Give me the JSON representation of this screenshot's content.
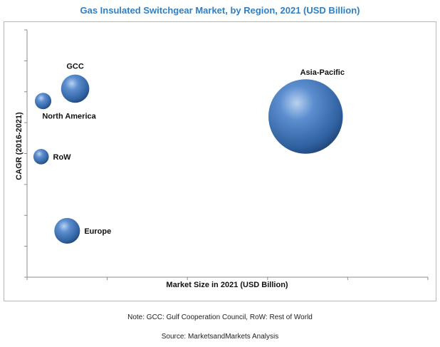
{
  "title": "Gas Insulated Switchgear Market, by Region, 2021 (USD Billion)",
  "note": "Note: GCC: Gulf Cooperation Council, RoW: Rest of World",
  "source": "Source: MarketsandMarkets Analysis",
  "chart_data": {
    "type": "scatter",
    "title": "Gas Insulated Switchgear Market, by Region, 2021 (USD Billion)",
    "xlabel": "Market Size in 2021 (USD Billion)",
    "ylabel": "CAGR (2016-2021)",
    "xlim": [
      0,
      10
    ],
    "ylim": [
      0,
      8
    ],
    "grid": false,
    "tick_labels_shown": false,
    "bubble_color": "#3f72b6",
    "points": [
      {
        "label": "GCC",
        "x": 1.2,
        "y": 6.1,
        "size": 0.55
      },
      {
        "label": "North America",
        "x": 0.4,
        "y": 5.7,
        "size": 0.32
      },
      {
        "label": "RoW",
        "x": 0.35,
        "y": 3.9,
        "size": 0.3
      },
      {
        "label": "Europe",
        "x": 1.0,
        "y": 1.5,
        "size": 0.5
      },
      {
        "label": "Asia-Pacific",
        "x": 6.95,
        "y": 5.2,
        "size": 1.45
      }
    ]
  }
}
